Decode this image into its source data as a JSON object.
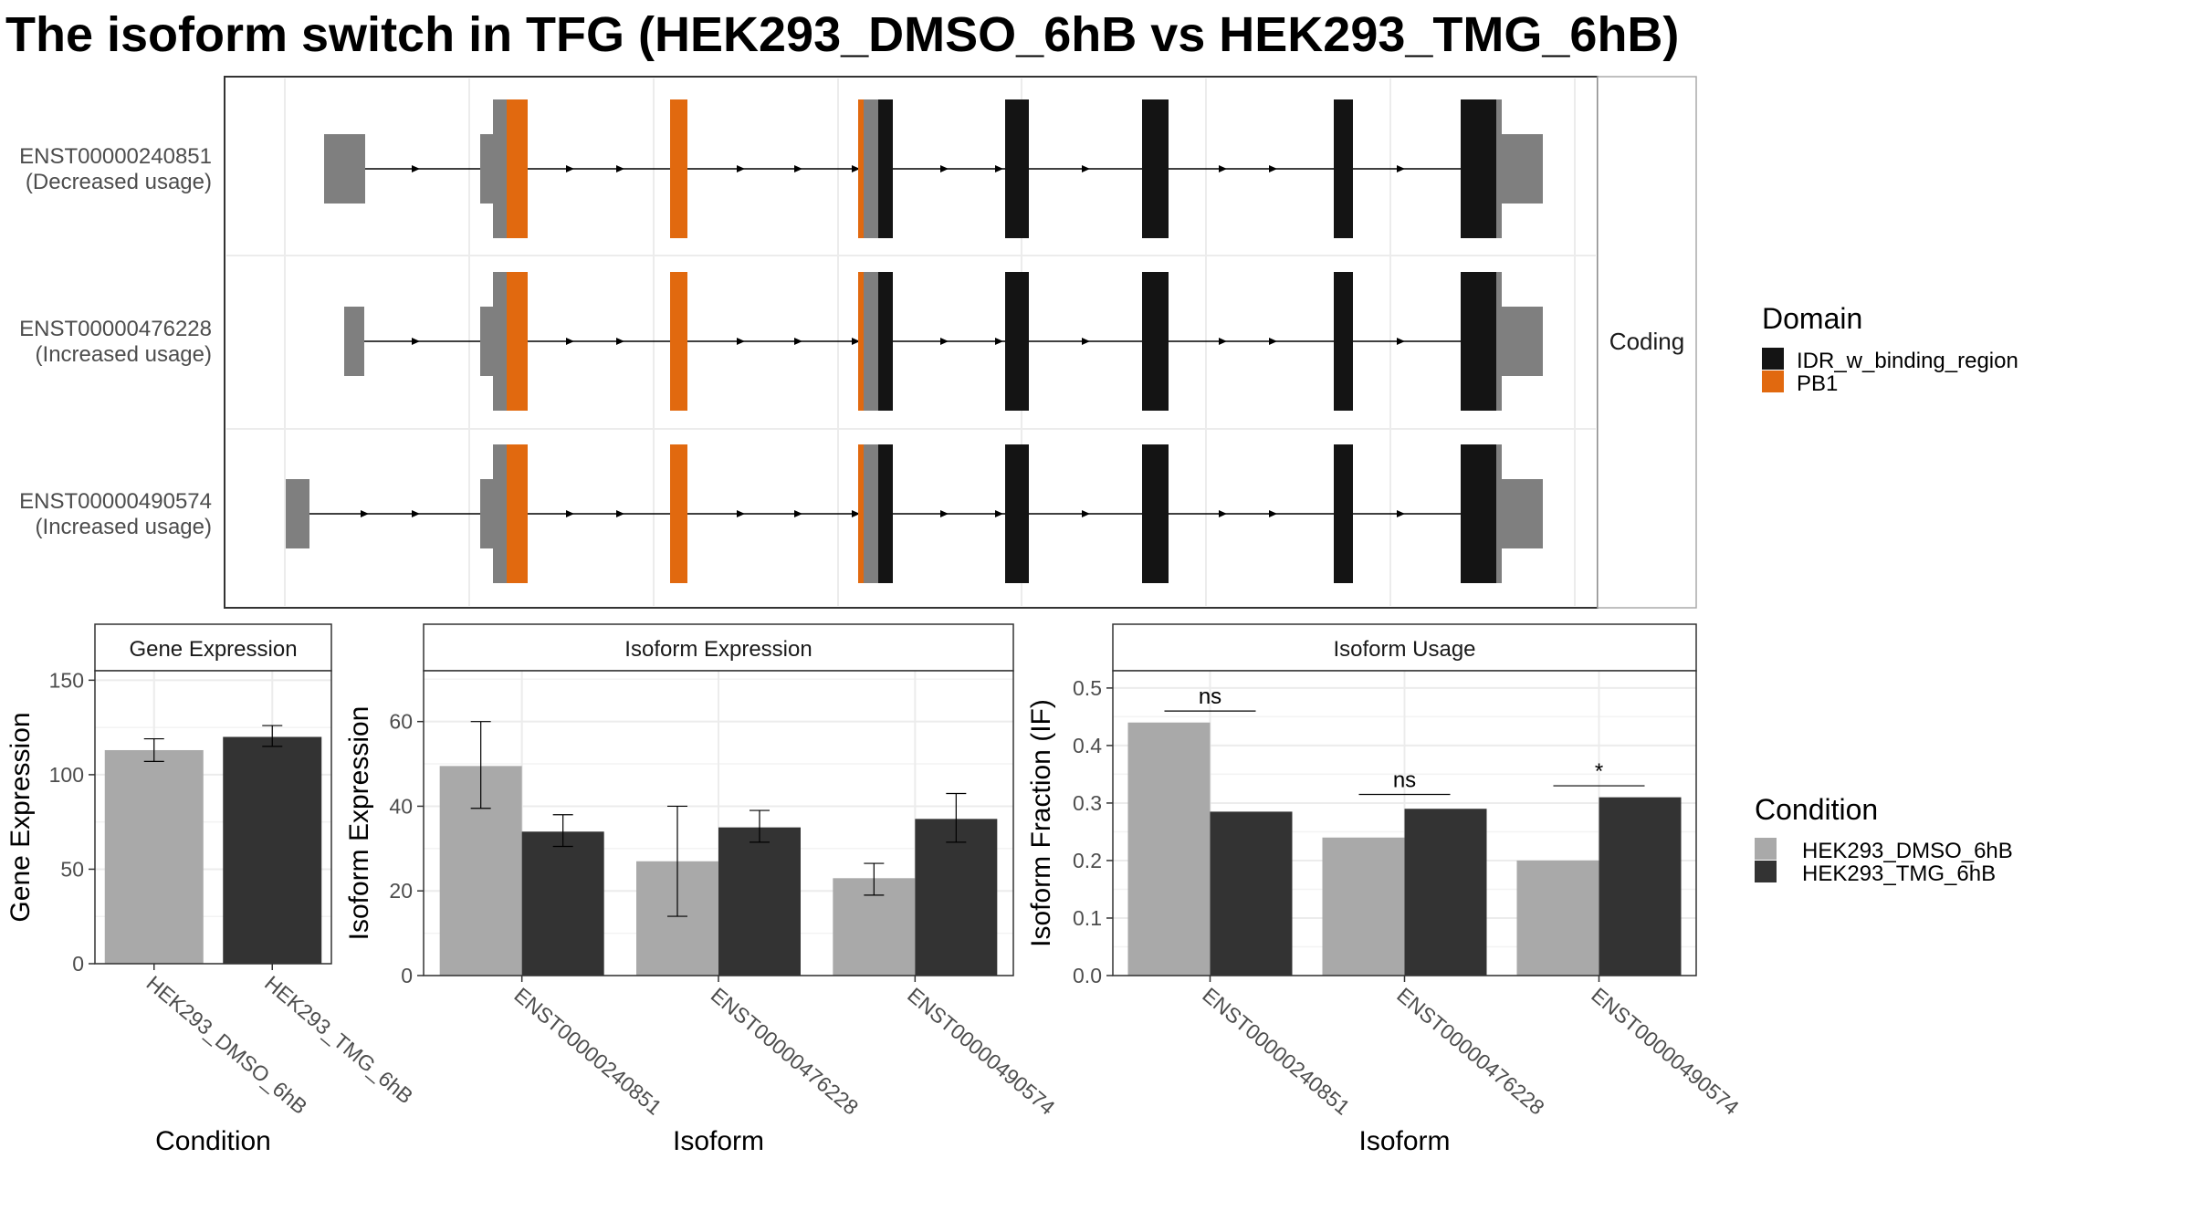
{
  "title": "The isoform switch in TFG (HEK293_DMSO_6hB vs HEK293_TMG_6hB)",
  "colors": {
    "idr": "#141414",
    "pb1": "#e1690f",
    "utr": "#7f7f7f",
    "dmso": "#a9a9a9",
    "tmg": "#333333",
    "grid": "#ececec",
    "panel_border": "#333333",
    "strip_fill": "#ffffff"
  },
  "structure": {
    "strip_label": "Coding",
    "isoforms": [
      {
        "id": "ENST00000240851",
        "usage": "(Decreased usage)"
      },
      {
        "id": "ENST00000476228",
        "usage": "(Increased usage)"
      },
      {
        "id": "ENST00000490574",
        "usage": "(Increased usage)"
      }
    ]
  },
  "legend_domain": {
    "title": "Domain",
    "items": [
      {
        "label": "IDR_w_binding_region",
        "color_key": "idr"
      },
      {
        "label": "PB1",
        "color_key": "pb1"
      }
    ]
  },
  "legend_condition": {
    "title": "Condition",
    "items": [
      {
        "label": "HEK293_DMSO_6hB",
        "color_key": "dmso"
      },
      {
        "label": "HEK293_TMG_6hB",
        "color_key": "tmg"
      }
    ]
  },
  "chart_data": [
    {
      "type": "bar",
      "title": "Gene Expression",
      "xlabel": "Condition",
      "ylabel": "Gene Expression",
      "categories": [
        "HEK293_DMSO_6hB",
        "HEK293_TMG_6hB"
      ],
      "values": [
        113,
        120
      ],
      "errors": [
        [
          107,
          119
        ],
        [
          115,
          126
        ]
      ],
      "ylim": [
        0,
        155
      ],
      "yticks": [
        0,
        50,
        100,
        150
      ]
    },
    {
      "type": "bar",
      "title": "Isoform Expression",
      "xlabel": "Isoform",
      "ylabel": "Isoform Expression",
      "categories": [
        "ENST00000240851",
        "ENST00000476228",
        "ENST00000490574"
      ],
      "series": [
        {
          "name": "HEK293_DMSO_6hB",
          "values": [
            49.5,
            27,
            23
          ],
          "errors": [
            [
              39.5,
              60
            ],
            [
              14,
              40
            ],
            [
              19,
              26.5
            ]
          ]
        },
        {
          "name": "HEK293_TMG_6hB",
          "values": [
            34,
            35,
            37
          ],
          "errors": [
            [
              30.5,
              38
            ],
            [
              31.5,
              39
            ],
            [
              31.5,
              43
            ]
          ]
        }
      ],
      "ylim": [
        0,
        72
      ],
      "yticks": [
        0,
        20,
        40,
        60
      ]
    },
    {
      "type": "bar",
      "title": "Isoform Usage",
      "xlabel": "Isoform",
      "ylabel": "Isoform Fraction (IF)",
      "categories": [
        "ENST00000240851",
        "ENST00000476228",
        "ENST00000490574"
      ],
      "series": [
        {
          "name": "HEK293_DMSO_6hB",
          "values": [
            0.44,
            0.24,
            0.2
          ]
        },
        {
          "name": "HEK293_TMG_6hB",
          "values": [
            0.285,
            0.29,
            0.31
          ]
        }
      ],
      "significance": [
        {
          "label": "ns",
          "y": 0.46
        },
        {
          "label": "ns",
          "y": 0.315
        },
        {
          "label": "*",
          "y": 0.33
        }
      ],
      "ylim": [
        0,
        0.53
      ],
      "yticks": [
        "0.0",
        "0.1",
        "0.2",
        "0.3",
        "0.4",
        "0.5"
      ]
    }
  ]
}
